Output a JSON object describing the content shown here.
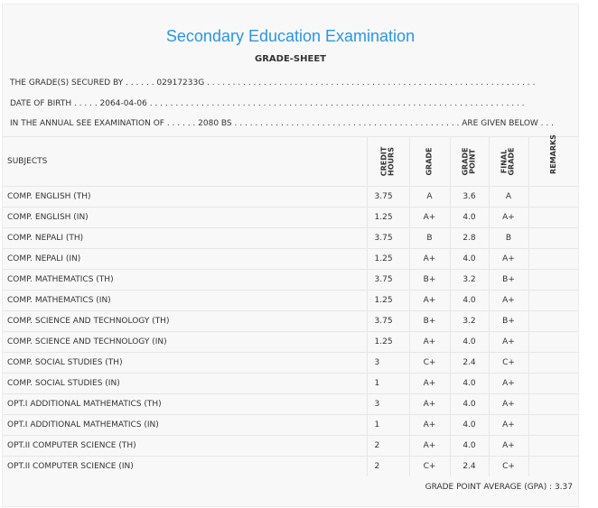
{
  "title": "Secondary Education Examination",
  "subtitle": "GRADE-SHEET",
  "info": {
    "secured_by": "THE GRADE(S) SECURED BY . . . . . . 02917233G . . . . . . . . . . . . . . . . . . . . . . . . . . . . . . . . . . . . . . . . . . . . . . . . . . . . . . . . . . . . . . . .",
    "dob": "DATE OF BIRTH . . . . . 2064-04-06 . . . . . . . . . . . . . . . . . . . . . . . . . . . . . . . . . . . . . . . . . . . . . . . . . . . . . . . . . . . . . . . . . . . . . . . . .",
    "exam": "IN THE ANNUAL SEE EXAMINATION OF . . . . . . 2080 BS . . . . . . . . . . . . . . . . . . . . . . . . . . . . . . . . . . . . . . . . . . . . ARE GIVEN BELOW . . ."
  },
  "headers": {
    "subjects": "SUBJECTS",
    "credit_1": "CREDIT",
    "credit_2": "HOURS",
    "grade": "GRADE",
    "gp_1": "GRADE",
    "gp_2": "POINT",
    "fg_1": "FINAL",
    "fg_2": "GRADE",
    "remarks": "REMARKS"
  },
  "rows": [
    {
      "subject": "COMP. ENGLISH (TH)",
      "credit": "3.75",
      "grade": "A",
      "gp": "3.6",
      "final": "A"
    },
    {
      "subject": "COMP. ENGLISH (IN)",
      "credit": "1.25",
      "grade": "A+",
      "gp": "4.0",
      "final": "A+"
    },
    {
      "subject": "COMP. NEPALI (TH)",
      "credit": "3.75",
      "grade": "B",
      "gp": "2.8",
      "final": "B"
    },
    {
      "subject": "COMP. NEPALI (IN)",
      "credit": "1.25",
      "grade": "A+",
      "gp": "4.0",
      "final": "A+"
    },
    {
      "subject": "COMP. MATHEMATICS (TH)",
      "credit": "3.75",
      "grade": "B+",
      "gp": "3.2",
      "final": "B+"
    },
    {
      "subject": "COMP. MATHEMATICS (IN)",
      "credit": "1.25",
      "grade": "A+",
      "gp": "4.0",
      "final": "A+"
    },
    {
      "subject": "COMP. SCIENCE AND TECHNOLOGY (TH)",
      "credit": "3.75",
      "grade": "B+",
      "gp": "3.2",
      "final": "B+"
    },
    {
      "subject": "COMP. SCIENCE AND TECHNOLOGY (IN)",
      "credit": "1.25",
      "grade": "A+",
      "gp": "4.0",
      "final": "A+"
    },
    {
      "subject": "COMP. SOCIAL STUDIES (TH)",
      "credit": "3",
      "grade": "C+",
      "gp": "2.4",
      "final": "C+"
    },
    {
      "subject": "COMP. SOCIAL STUDIES (IN)",
      "credit": "1",
      "grade": "A+",
      "gp": "4.0",
      "final": "A+"
    },
    {
      "subject": "OPT.I ADDITIONAL MATHEMATICS (TH)",
      "credit": "3",
      "grade": "A+",
      "gp": "4.0",
      "final": "A+"
    },
    {
      "subject": "OPT.I ADDITIONAL MATHEMATICS (IN)",
      "credit": "1",
      "grade": "A+",
      "gp": "4.0",
      "final": "A+"
    },
    {
      "subject": "OPT.II COMPUTER SCIENCE (TH)",
      "credit": "2",
      "grade": "A+",
      "gp": "4.0",
      "final": "A+"
    },
    {
      "subject": "OPT.II COMPUTER SCIENCE (IN)",
      "credit": "2",
      "grade": "C+",
      "gp": "2.4",
      "final": "C+"
    }
  ],
  "gpa": "GRADE POINT AVERAGE (GPA) : 3.37"
}
